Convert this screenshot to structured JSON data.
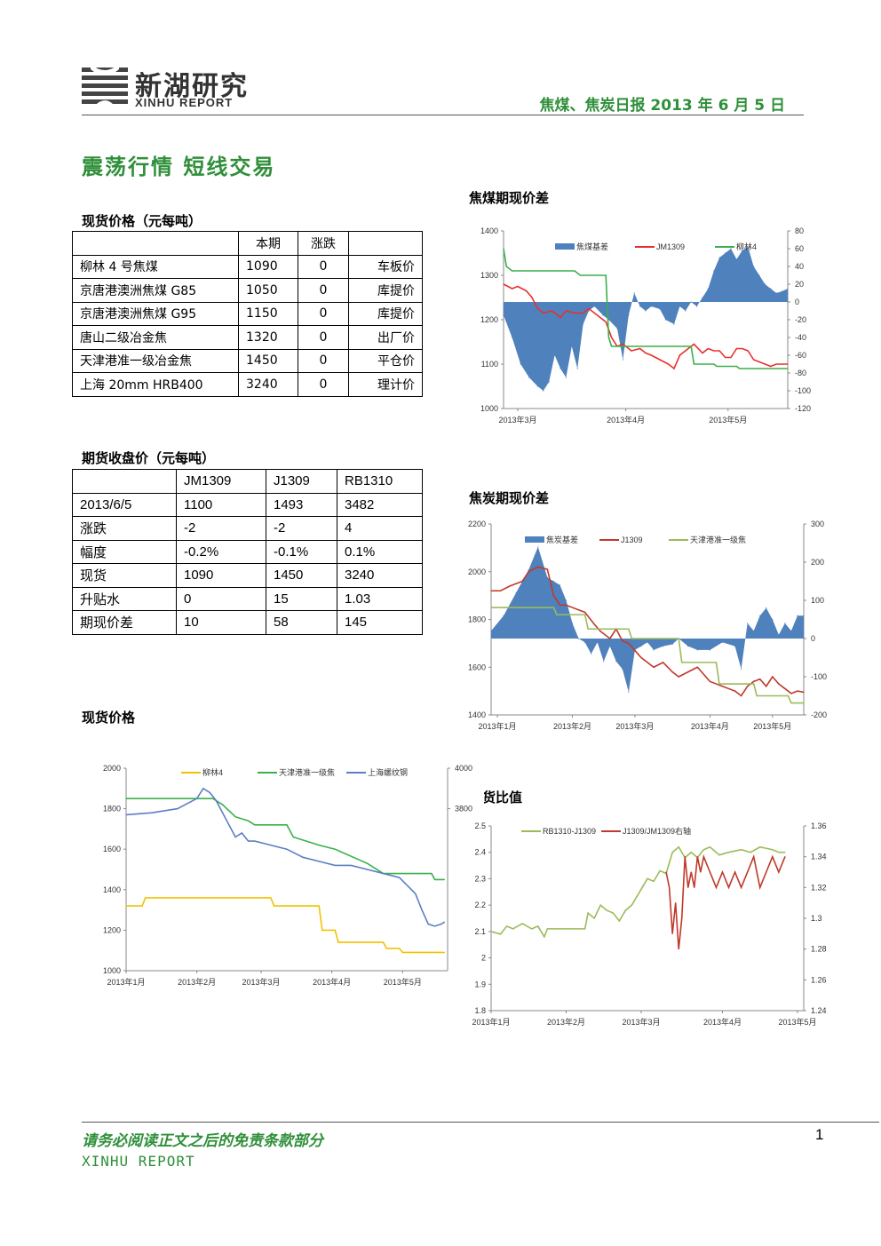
{
  "header": {
    "logo_name": "新湖研究",
    "logo_sub": "XINHU REPORT",
    "report_title": "焦煤、焦炭日报 2013 年 6 月 5 日"
  },
  "title": "震荡行情 短线交易",
  "spot_table": {
    "caption": "现货价格（元每吨）",
    "headers": [
      "",
      "本期",
      "涨跌",
      ""
    ],
    "rows": [
      [
        "柳林 4 号焦煤",
        "1090",
        "0",
        "车板价"
      ],
      [
        "京唐港澳洲焦煤 G85",
        "1050",
        "0",
        "库提价"
      ],
      [
        "京唐港澳洲焦煤 G95",
        "1150",
        "0",
        "库提价"
      ],
      [
        "唐山二级冶金焦",
        "1320",
        "0",
        "出厂价"
      ],
      [
        "天津港准一级冶金焦",
        "1450",
        "0",
        "平仓价"
      ],
      [
        "上海 20mm HRB400",
        "3240",
        "0",
        "理计价"
      ]
    ]
  },
  "futures_table": {
    "caption": "期货收盘价（元每吨）",
    "headers": [
      "",
      "JM1309",
      "J1309",
      "RB1310"
    ],
    "rows": [
      [
        "2013/6/5",
        "1100",
        "1493",
        "3482"
      ],
      [
        "涨跌",
        "-2",
        "-2",
        "4"
      ],
      [
        "幅度",
        "-0.2%",
        "-0.1%",
        "0.1%"
      ],
      [
        "现货",
        "1090",
        "1450",
        "3240"
      ],
      [
        "升贴水",
        "0",
        "15",
        "1.03"
      ],
      [
        "期现价差",
        "10",
        "58",
        "145"
      ]
    ]
  },
  "sections": {
    "spot_chart": "现货价格",
    "coal_basis": "焦煤期现价差",
    "coke_basis": "焦炭期现价差",
    "ratio": "期货比值"
  },
  "footer": {
    "disclaimer": "请务必阅读正文之后的免责条款部分",
    "brand": "XINHU REPORT",
    "page": "1"
  },
  "chart_data": [
    {
      "id": "coal_basis",
      "type": "line",
      "title": "",
      "x_ticks": [
        "2013年3月",
        "2013年4月",
        "2013年5月"
      ],
      "x_tick_pos": [
        0.05,
        0.43,
        0.79
      ],
      "y_left": [
        1000,
        1400
      ],
      "y_left_ticks": [
        1000,
        1100,
        1200,
        1300,
        1400
      ],
      "y_right": [
        -120,
        80
      ],
      "y_right_ticks": [
        -120,
        -100,
        -80,
        -60,
        -40,
        -20,
        0,
        20,
        40,
        60,
        80
      ],
      "series": [
        {
          "name": "焦煤基差",
          "kind": "area",
          "axis": "right",
          "color": "#4f81bd",
          "x": [
            0,
            0.03,
            0.06,
            0.09,
            0.12,
            0.14,
            0.16,
            0.18,
            0.2,
            0.22,
            0.24,
            0.26,
            0.28,
            0.3,
            0.32,
            0.35,
            0.37,
            0.4,
            0.42,
            0.44,
            0.46,
            0.48,
            0.5,
            0.52,
            0.55,
            0.57,
            0.6,
            0.62,
            0.64,
            0.66,
            0.68,
            0.7,
            0.72,
            0.74,
            0.76,
            0.78,
            0.8,
            0.82,
            0.84,
            0.86,
            0.88,
            0.9,
            0.92,
            0.94,
            0.96,
            0.98,
            1
          ],
          "y": [
            -15,
            -40,
            -70,
            -85,
            -95,
            -100,
            -90,
            -60,
            -75,
            -85,
            -50,
            -75,
            -25,
            -10,
            -5,
            -15,
            -20,
            -30,
            -65,
            -15,
            10,
            -5,
            -10,
            -5,
            -8,
            -20,
            -25,
            -5,
            -10,
            0,
            -5,
            5,
            15,
            35,
            50,
            55,
            60,
            48,
            58,
            62,
            40,
            30,
            20,
            15,
            10,
            12,
            15
          ]
        },
        {
          "name": "JM1309",
          "kind": "line",
          "axis": "left",
          "color": "#e8302b",
          "x": [
            0,
            0.03,
            0.05,
            0.08,
            0.1,
            0.12,
            0.14,
            0.17,
            0.2,
            0.22,
            0.25,
            0.28,
            0.3,
            0.33,
            0.36,
            0.38,
            0.4,
            0.42,
            0.45,
            0.48,
            0.5,
            0.52,
            0.55,
            0.58,
            0.6,
            0.62,
            0.65,
            0.67,
            0.7,
            0.72,
            0.74,
            0.76,
            0.78,
            0.8,
            0.82,
            0.84,
            0.86,
            0.88,
            0.9,
            0.92,
            0.94,
            0.96,
            0.98,
            1
          ],
          "y": [
            1280,
            1270,
            1275,
            1265,
            1250,
            1225,
            1215,
            1220,
            1205,
            1220,
            1215,
            1215,
            1225,
            1210,
            1195,
            1160,
            1140,
            1145,
            1130,
            1135,
            1125,
            1120,
            1110,
            1100,
            1090,
            1120,
            1135,
            1145,
            1125,
            1135,
            1130,
            1130,
            1115,
            1115,
            1135,
            1135,
            1130,
            1110,
            1105,
            1100,
            1095,
            1100,
            1100,
            1100
          ]
        },
        {
          "name": "柳林4",
          "kind": "line",
          "axis": "left",
          "color": "#3ab04a",
          "x": [
            0,
            0.01,
            0.03,
            0.25,
            0.27,
            0.28,
            0.36,
            0.37,
            0.38,
            0.66,
            0.67,
            0.68,
            0.74,
            0.75,
            0.76,
            0.82,
            0.83,
            0.84,
            0.88,
            0.89,
            1
          ],
          "y": [
            1360,
            1320,
            1310,
            1310,
            1300,
            1300,
            1300,
            1160,
            1140,
            1140,
            1100,
            1100,
            1100,
            1095,
            1095,
            1095,
            1090,
            1090,
            1090,
            1090,
            1090
          ]
        }
      ]
    },
    {
      "id": "coke_basis",
      "type": "line",
      "title": "",
      "x_ticks": [
        "2013年1月",
        "2013年2月",
        "2013年3月",
        "2013年4月",
        "2013年5月"
      ],
      "x_tick_pos": [
        0.02,
        0.26,
        0.46,
        0.7,
        0.9
      ],
      "y_left": [
        1400,
        2200
      ],
      "y_left_ticks": [
        1400,
        1600,
        1800,
        2000,
        2200
      ],
      "y_right": [
        -200,
        300
      ],
      "y_right_ticks": [
        -200,
        -100,
        0,
        100,
        200,
        300
      ],
      "series": [
        {
          "name": "焦炭基差",
          "kind": "area",
          "axis": "right",
          "color": "#4f81bd",
          "x": [
            0,
            0.04,
            0.08,
            0.12,
            0.15,
            0.18,
            0.2,
            0.22,
            0.24,
            0.26,
            0.28,
            0.3,
            0.32,
            0.34,
            0.36,
            0.38,
            0.4,
            0.42,
            0.44,
            0.46,
            0.48,
            0.5,
            0.52,
            0.55,
            0.58,
            0.6,
            0.63,
            0.66,
            0.7,
            0.74,
            0.78,
            0.8,
            0.82,
            0.84,
            0.86,
            0.88,
            0.9,
            0.92,
            0.94,
            0.96,
            0.98,
            1
          ],
          "y": [
            20,
            60,
            120,
            180,
            240,
            160,
            150,
            140,
            100,
            40,
            0,
            -10,
            -40,
            -10,
            -60,
            -20,
            -60,
            -80,
            -140,
            -30,
            -20,
            -10,
            -30,
            -20,
            -15,
            0,
            -20,
            -30,
            -30,
            -10,
            -20,
            -80,
            40,
            20,
            60,
            80,
            50,
            10,
            40,
            20,
            60,
            60
          ]
        },
        {
          "name": "J1309",
          "kind": "line",
          "axis": "left",
          "color": "#c0392b",
          "x": [
            0,
            0.03,
            0.06,
            0.1,
            0.12,
            0.15,
            0.18,
            0.2,
            0.22,
            0.24,
            0.26,
            0.28,
            0.3,
            0.33,
            0.35,
            0.38,
            0.4,
            0.42,
            0.44,
            0.46,
            0.48,
            0.5,
            0.52,
            0.55,
            0.58,
            0.6,
            0.63,
            0.66,
            0.7,
            0.72,
            0.74,
            0.76,
            0.78,
            0.8,
            0.82,
            0.84,
            0.86,
            0.88,
            0.9,
            0.92,
            0.94,
            0.96,
            0.98,
            1
          ],
          "y": [
            1920,
            1920,
            1940,
            1960,
            2000,
            2020,
            2010,
            1900,
            1860,
            1860,
            1850,
            1840,
            1830,
            1780,
            1750,
            1720,
            1760,
            1710,
            1700,
            1670,
            1640,
            1620,
            1600,
            1620,
            1580,
            1560,
            1580,
            1600,
            1540,
            1530,
            1520,
            1510,
            1500,
            1480,
            1520,
            1540,
            1550,
            1520,
            1560,
            1530,
            1510,
            1490,
            1500,
            1495
          ]
        },
        {
          "name": "天津港准一级焦",
          "kind": "line",
          "axis": "left",
          "color": "#9bbb59",
          "x": [
            0,
            0.2,
            0.21,
            0.3,
            0.31,
            0.44,
            0.45,
            0.6,
            0.61,
            0.72,
            0.73,
            0.84,
            0.85,
            0.95,
            0.96,
            1
          ],
          "y": [
            1850,
            1850,
            1820,
            1820,
            1760,
            1760,
            1720,
            1720,
            1620,
            1620,
            1530,
            1530,
            1480,
            1480,
            1450,
            1450
          ]
        }
      ]
    },
    {
      "id": "spot_prices",
      "type": "line",
      "title": "",
      "x_ticks": [
        "2013年1月",
        "2013年2月",
        "2013年3月",
        "2013年4月",
        "2013年5月"
      ],
      "x_tick_pos": [
        0.0,
        0.22,
        0.42,
        0.64,
        0.86
      ],
      "y_left": [
        1000,
        2000
      ],
      "y_left_ticks": [
        1000,
        1200,
        1400,
        1600,
        1800,
        2000
      ],
      "y_right": [
        3000,
        4000
      ],
      "y_right_ticks": [
        4000,
        3800
      ],
      "series": [
        {
          "name": "柳林4",
          "kind": "line",
          "axis": "left",
          "color": "#f2c200",
          "x": [
            0,
            0.05,
            0.06,
            0.45,
            0.46,
            0.6,
            0.61,
            0.65,
            0.66,
            0.8,
            0.81,
            0.85,
            0.86,
            0.99
          ],
          "y": [
            1320,
            1320,
            1360,
            1360,
            1320,
            1320,
            1200,
            1200,
            1140,
            1140,
            1110,
            1110,
            1090,
            1090
          ]
        },
        {
          "name": "天津港准一级焦",
          "kind": "line",
          "axis": "left",
          "color": "#3ab04a",
          "x": [
            0,
            0.27,
            0.3,
            0.34,
            0.38,
            0.4,
            0.5,
            0.52,
            0.6,
            0.65,
            0.75,
            0.8,
            0.95,
            0.96,
            0.99
          ],
          "y": [
            1850,
            1850,
            1820,
            1760,
            1740,
            1720,
            1720,
            1660,
            1620,
            1600,
            1530,
            1480,
            1480,
            1450,
            1450
          ]
        },
        {
          "name": "上海螺纹钢",
          "kind": "line",
          "axis": "right",
          "color": "#5b7fc4",
          "x": [
            0,
            0.08,
            0.16,
            0.22,
            0.24,
            0.26,
            0.28,
            0.3,
            0.32,
            0.34,
            0.36,
            0.38,
            0.4,
            0.45,
            0.5,
            0.55,
            0.6,
            0.65,
            0.7,
            0.75,
            0.8,
            0.85,
            0.9,
            0.92,
            0.94,
            0.96,
            0.98,
            0.99
          ],
          "y": [
            3770,
            3780,
            3800,
            3850,
            3900,
            3880,
            3840,
            3780,
            3720,
            3660,
            3680,
            3640,
            3640,
            3620,
            3600,
            3560,
            3540,
            3520,
            3520,
            3500,
            3480,
            3460,
            3380,
            3300,
            3230,
            3220,
            3230,
            3240
          ]
        }
      ]
    },
    {
      "id": "ratio",
      "type": "line",
      "title": "",
      "x_ticks": [
        "2013年1月",
        "2013年2月",
        "2013年3月",
        "2013年4月",
        "2013年5月"
      ],
      "x_tick_pos": [
        0.0,
        0.24,
        0.48,
        0.74,
        0.98
      ],
      "y_left": [
        1.8,
        2.5
      ],
      "y_left_ticks": [
        1.8,
        1.9,
        2,
        2.1,
        2.2,
        2.3,
        2.4,
        2.5
      ],
      "y_right": [
        1.24,
        1.36
      ],
      "y_right_ticks": [
        1.24,
        1.26,
        1.28,
        1.3,
        1.32,
        1.34,
        1.36
      ],
      "series": [
        {
          "name": "RB1310-J1309",
          "kind": "line",
          "axis": "left",
          "color": "#9bbb59",
          "x": [
            0,
            0.03,
            0.05,
            0.07,
            0.1,
            0.13,
            0.15,
            0.17,
            0.18,
            0.2,
            0.3,
            0.31,
            0.33,
            0.35,
            0.37,
            0.39,
            0.41,
            0.43,
            0.45,
            0.48,
            0.5,
            0.52,
            0.54,
            0.56,
            0.58,
            0.6,
            0.62,
            0.64,
            0.66,
            0.68,
            0.7,
            0.73,
            0.76,
            0.8,
            0.83,
            0.86,
            0.9,
            0.92,
            0.94
          ],
          "y": [
            2.1,
            2.09,
            2.12,
            2.11,
            2.13,
            2.11,
            2.12,
            2.08,
            2.11,
            2.11,
            2.11,
            2.17,
            2.15,
            2.2,
            2.18,
            2.17,
            2.14,
            2.18,
            2.2,
            2.26,
            2.3,
            2.29,
            2.33,
            2.32,
            2.4,
            2.42,
            2.38,
            2.4,
            2.38,
            2.41,
            2.42,
            2.39,
            2.4,
            2.41,
            2.4,
            2.42,
            2.41,
            2.4,
            2.4
          ]
        },
        {
          "name": "J1309/JM1309右轴",
          "kind": "line",
          "axis": "right",
          "color": "#c0392b",
          "x": [
            0.56,
            0.57,
            0.58,
            0.59,
            0.6,
            0.61,
            0.62,
            0.63,
            0.64,
            0.65,
            0.66,
            0.67,
            0.68,
            0.7,
            0.72,
            0.74,
            0.76,
            0.78,
            0.8,
            0.82,
            0.84,
            0.86,
            0.88,
            0.9,
            0.92,
            0.94
          ],
          "y": [
            1.33,
            1.32,
            1.29,
            1.31,
            1.28,
            1.3,
            1.34,
            1.32,
            1.33,
            1.32,
            1.34,
            1.33,
            1.34,
            1.33,
            1.32,
            1.33,
            1.32,
            1.33,
            1.32,
            1.33,
            1.34,
            1.32,
            1.33,
            1.34,
            1.33,
            1.34
          ]
        }
      ]
    }
  ]
}
